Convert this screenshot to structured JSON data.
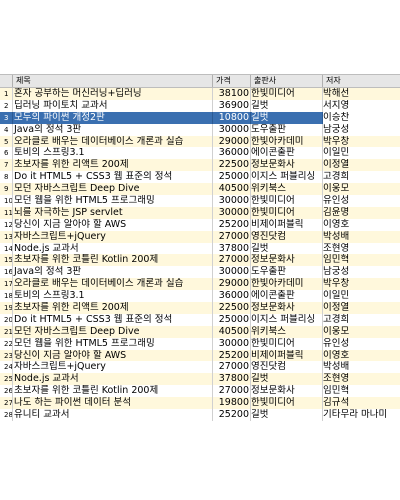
{
  "columns": [
    "제목",
    "가격",
    "출판사",
    "저자"
  ],
  "rows": [
    {
      "n": "1",
      "title": "혼자 공부하는 머신러닝+딥러닝",
      "price": "38100",
      "pub": "한빛미디어",
      "author": "박해선"
    },
    {
      "n": "2",
      "title": "딥러닝 파이토치 교과서",
      "price": "36900",
      "pub": "길벗",
      "author": "서지영"
    },
    {
      "n": "3",
      "title": "모두의 파이썬 개정2판",
      "price": "10800",
      "pub": "길벗",
      "author": "이승찬"
    },
    {
      "n": "4",
      "title": "Java의 정석 3판",
      "price": "30000",
      "pub": "도우출판",
      "author": "남궁성"
    },
    {
      "n": "5",
      "title": "오라클로 배우는 데이터베이스 개론과 실습",
      "price": "29000",
      "pub": "한빛아카데미",
      "author": "박우창"
    },
    {
      "n": "6",
      "title": "토비의 스프링3.1",
      "price": "36000",
      "pub": "에이콘출판",
      "author": "이일민"
    },
    {
      "n": "7",
      "title": "초보자를 위한 리액트 200제",
      "price": "22500",
      "pub": "정보문화사",
      "author": "이정열"
    },
    {
      "n": "8",
      "title": "Do it HTML5 + CSS3 웹 표준의 정석",
      "price": "25000",
      "pub": "이지스 퍼블리싱",
      "author": "고경희"
    },
    {
      "n": "9",
      "title": "모던 자바스크립트 Deep Dive",
      "price": "40500",
      "pub": "위키북스",
      "author": "이웅모"
    },
    {
      "n": "10",
      "title": "모던 웹을 위한 HTML5 프로그래밍",
      "price": "30000",
      "pub": "한빛미디어",
      "author": "유인성"
    },
    {
      "n": "11",
      "title": "뇌를 자극하는 JSP servlet",
      "price": "30000",
      "pub": "한빛미디어",
      "author": "김윤명"
    },
    {
      "n": "12",
      "title": "당신이 지금 알아야 할 AWS",
      "price": "25200",
      "pub": "비제이퍼블릭",
      "author": "이영호"
    },
    {
      "n": "13",
      "title": "자바스크립트+jQuery",
      "price": "27000",
      "pub": "영진닷컴",
      "author": "박성배"
    },
    {
      "n": "14",
      "title": "Node.js 교과서",
      "price": "37800",
      "pub": "길벗",
      "author": "조현영"
    },
    {
      "n": "15",
      "title": "초보자를 위한 코틀린 Kotlin 200제",
      "price": "27000",
      "pub": "정보문화사",
      "author": "임민혁"
    },
    {
      "n": "16",
      "title": "Java의 정석 3판",
      "price": "30000",
      "pub": "도우출판",
      "author": "남궁성"
    },
    {
      "n": "17",
      "title": "오라클로 배우는 데이터베이스 개론과 실습",
      "price": "29000",
      "pub": "한빛아카데미",
      "author": "박우창"
    },
    {
      "n": "18",
      "title": "토비의 스프링3.1",
      "price": "36000",
      "pub": "에이콘출판",
      "author": "이일민"
    },
    {
      "n": "19",
      "title": "초보자를 위한 리액트 200제",
      "price": "22500",
      "pub": "정보문화사",
      "author": "이정열"
    },
    {
      "n": "20",
      "title": "Do it HTML5 + CSS3 웹 표준의 정석",
      "price": "25000",
      "pub": "이지스 퍼블리싱",
      "author": "고경희"
    },
    {
      "n": "21",
      "title": "모던 자바스크립트 Deep Dive",
      "price": "40500",
      "pub": "위키북스",
      "author": "이웅모"
    },
    {
      "n": "22",
      "title": "모던 웹을 위한 HTML5 프로그래밍",
      "price": "30000",
      "pub": "한빛미디어",
      "author": "유인성"
    },
    {
      "n": "23",
      "title": "당신이 지금 알아야 할 AWS",
      "price": "25200",
      "pub": "비제이퍼블릭",
      "author": "이영호"
    },
    {
      "n": "24",
      "title": "자바스크립트+jQuery",
      "price": "27000",
      "pub": "영진닷컴",
      "author": "박성배"
    },
    {
      "n": "25",
      "title": "Node.js 교과서",
      "price": "37800",
      "pub": "길벗",
      "author": "조현영"
    },
    {
      "n": "26",
      "title": "초보자를 위한 코틀린 Kotlin 200제",
      "price": "27000",
      "pub": "정보문화사",
      "author": "임민혁"
    },
    {
      "n": "27",
      "title": "나도 하는 파이썬 데이터 분석",
      "price": "19800",
      "pub": "한빛미디어",
      "author": "김규석"
    },
    {
      "n": "28",
      "title": "유니티 교과서",
      "price": "25200",
      "pub": "길벗",
      "author": "기타무라 마나미"
    }
  ],
  "selected_row": "3",
  "colors": {
    "odd_row": "#fff8dc",
    "selected": "#3a6fb0",
    "header": "#e6e6e6"
  }
}
